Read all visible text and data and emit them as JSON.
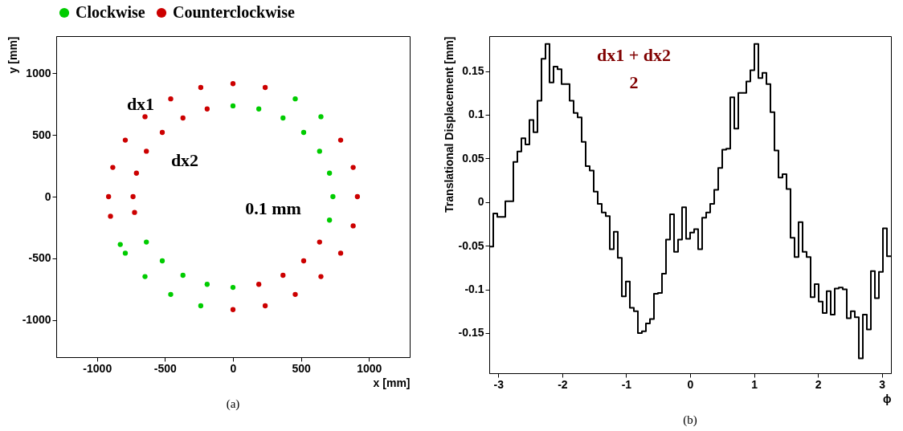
{
  "chart_data": [
    {
      "type": "scatter",
      "xlabel": "x [mm]",
      "ylabel": "y [mm]",
      "xlim": [
        -1300,
        1300
      ],
      "ylim": [
        -1300,
        1300
      ],
      "xticks": [
        -1000,
        -500,
        0,
        500,
        1000
      ],
      "yticks": [
        -1000,
        -500,
        0,
        500,
        1000
      ],
      "legend": "top",
      "marker": "circle",
      "annotations": [
        "dx1",
        "dx2",
        "0.1 mm",
        "(a)"
      ],
      "series": [
        {
          "name": "Clockwise",
          "color": "#00cc00",
          "x": [
            458,
            647,
            -237,
            -458,
            -647,
            -792,
            -829,
            0,
            190,
            368,
            520,
            637,
            710,
            735,
            710,
            0,
            -190,
            -368,
            -520,
            -637
          ],
          "values": [
            792,
            647,
            -884,
            -792,
            -647,
            -458,
            -387,
            735,
            710,
            637,
            520,
            368,
            190,
            0,
            -190,
            -735,
            -710,
            -637,
            -520,
            -368
          ]
        },
        {
          "name": "Counterclockwise",
          "color": "#cc0000",
          "x": [
            -901,
            -915,
            -884,
            -792,
            -647,
            -458,
            -237,
            0,
            237,
            792,
            884,
            915,
            884,
            792,
            647,
            458,
            237,
            0,
            -724,
            -735,
            -710,
            -637,
            -520,
            -368,
            -190,
            637,
            520,
            368,
            190
          ],
          "values": [
            -159,
            0,
            237,
            458,
            647,
            792,
            884,
            915,
            884,
            458,
            237,
            0,
            -237,
            -458,
            -647,
            -792,
            -884,
            -915,
            -128,
            0,
            190,
            368,
            520,
            637,
            710,
            -368,
            -520,
            -637,
            -710
          ]
        }
      ]
    },
    {
      "type": "histogram",
      "xlabel": "ϕ",
      "ylabel": "Translational Displacement [mm]",
      "xlim": [
        -3.1416,
        3.1416
      ],
      "ylim": [
        -0.196,
        0.19
      ],
      "xticks": [
        -3,
        -2,
        -1,
        0,
        1,
        2,
        3
      ],
      "yticks": [
        -0.15,
        -0.1,
        -0.05,
        0,
        0.05,
        0.1,
        0.15
      ],
      "annotations": [
        "dx1 + dx2",
        "2",
        "(b)"
      ],
      "color": "#000000",
      "bins": [
        -3.1416,
        -3.0788,
        -3.0159,
        -2.9531,
        -2.8903,
        -2.8274,
        -2.7646,
        -2.7018,
        -2.6389,
        -2.5761,
        -2.5133,
        -2.4504,
        -2.3876,
        -2.3248,
        -2.2619,
        -2.1991,
        -2.1363,
        -2.0735,
        -2.0106,
        -1.9478,
        -1.885,
        -1.8221,
        -1.7593,
        -1.6965,
        -1.6336,
        -1.5708,
        -1.508,
        -1.4451,
        -1.3823,
        -1.3195,
        -1.2566,
        -1.1938,
        -1.131,
        -1.0681,
        -1.0053,
        -0.9425,
        -0.8796,
        -0.8168,
        -0.754,
        -0.6912,
        -0.6283,
        -0.5655,
        -0.5027,
        -0.4398,
        -0.377,
        -0.3142,
        -0.2513,
        -0.1885,
        -0.1257,
        -0.0628,
        0,
        0.0628,
        0.1257,
        0.1885,
        0.2513,
        0.3142,
        0.377,
        0.4398,
        0.5027,
        0.5655,
        0.6283,
        0.6912,
        0.754,
        0.8168,
        0.8796,
        0.9425,
        1.0053,
        1.0681,
        1.131,
        1.1938,
        1.2566,
        1.3195,
        1.3823,
        1.4451,
        1.508,
        1.5708,
        1.6336,
        1.6965,
        1.7593,
        1.8221,
        1.885,
        1.9478,
        2.0106,
        2.0735,
        2.1363,
        2.1991,
        2.2619,
        2.3248,
        2.3876,
        2.4504,
        2.5133,
        2.5761,
        2.6389,
        2.7018,
        2.7646,
        2.8274,
        2.8903,
        2.9531,
        3.0159,
        3.0788,
        3.1416
      ],
      "values": [
        -0.051,
        -0.013,
        -0.017,
        -0.017,
        0.001,
        0.001,
        0.046,
        0.058,
        0.073,
        0.066,
        0.094,
        0.08,
        0.116,
        0.164,
        0.181,
        0.137,
        0.155,
        0.152,
        0.135,
        0.135,
        0.116,
        0.102,
        0.097,
        0.069,
        0.041,
        0.036,
        0.012,
        -0.002,
        -0.012,
        -0.016,
        -0.054,
        -0.034,
        -0.064,
        -0.108,
        -0.091,
        -0.121,
        -0.125,
        -0.15,
        -0.148,
        -0.139,
        -0.134,
        -0.105,
        -0.104,
        -0.082,
        -0.043,
        -0.014,
        -0.057,
        -0.043,
        -0.006,
        -0.042,
        -0.035,
        -0.031,
        -0.054,
        -0.018,
        -0.012,
        -0.002,
        0.014,
        0.039,
        0.06,
        0.061,
        0.12,
        0.084,
        0.125,
        0.125,
        0.138,
        0.151,
        0.181,
        0.142,
        0.148,
        0.135,
        0.103,
        0.059,
        0.028,
        0.032,
        0.015,
        -0.041,
        -0.063,
        -0.023,
        -0.057,
        -0.063,
        -0.109,
        -0.094,
        -0.114,
        -0.127,
        -0.102,
        -0.129,
        -0.099,
        -0.098,
        -0.1,
        -0.133,
        -0.125,
        -0.132,
        -0.179,
        -0.129,
        -0.146,
        -0.079,
        -0.11,
        -0.08,
        -0.03,
        -0.062
      ]
    }
  ]
}
